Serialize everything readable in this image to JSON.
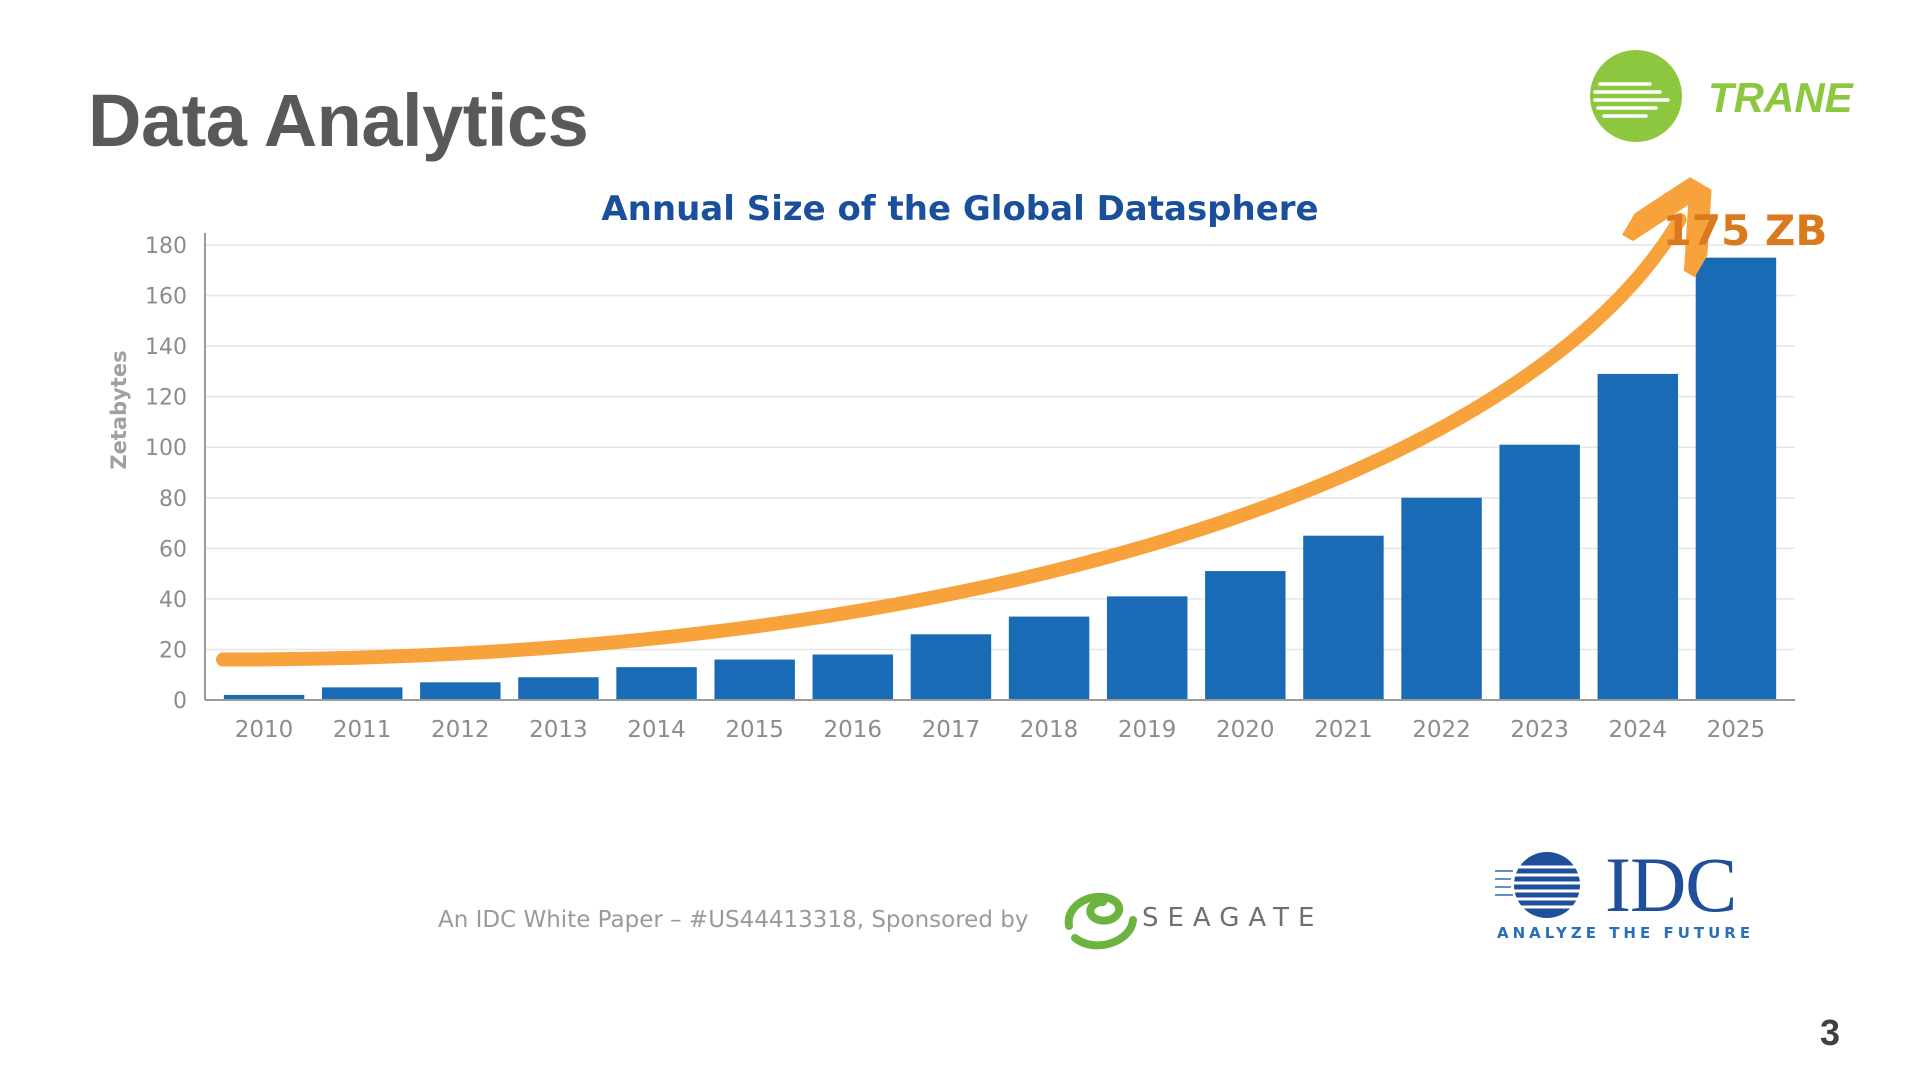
{
  "slide": {
    "title": "Data Analytics",
    "page_number": "3"
  },
  "brand": {
    "logo_text": "TRANE",
    "logo_color": "#8dc63f"
  },
  "chart_data": {
    "type": "bar",
    "title": "Annual Size of the Global Datasphere",
    "ylabel": "Zetabytes",
    "xlabel": "",
    "categories": [
      "2010",
      "2011",
      "2012",
      "2013",
      "2014",
      "2015",
      "2016",
      "2017",
      "2018",
      "2019",
      "2020",
      "2021",
      "2022",
      "2023",
      "2024",
      "2025"
    ],
    "values": [
      2,
      5,
      7,
      9,
      13,
      16,
      18,
      26,
      33,
      41,
      51,
      65,
      80,
      101,
      129,
      175
    ],
    "ylim": [
      0,
      180
    ],
    "yticks": [
      0,
      20,
      40,
      60,
      80,
      100,
      120,
      140,
      160,
      180
    ],
    "grid": true,
    "bar_color": "#1a6bb5",
    "trend_arrow_color": "#f7a23b",
    "annotation": {
      "text": "175 ZB",
      "color": "#d97a1f"
    }
  },
  "footer": {
    "source_text": "An IDC White Paper – #US44413318, Sponsored by",
    "sponsor": "SEAGATE",
    "sponsor_color": "#6cb33f",
    "idc_wordmark": "IDC",
    "idc_tagline": "ANALYZE THE FUTURE"
  }
}
